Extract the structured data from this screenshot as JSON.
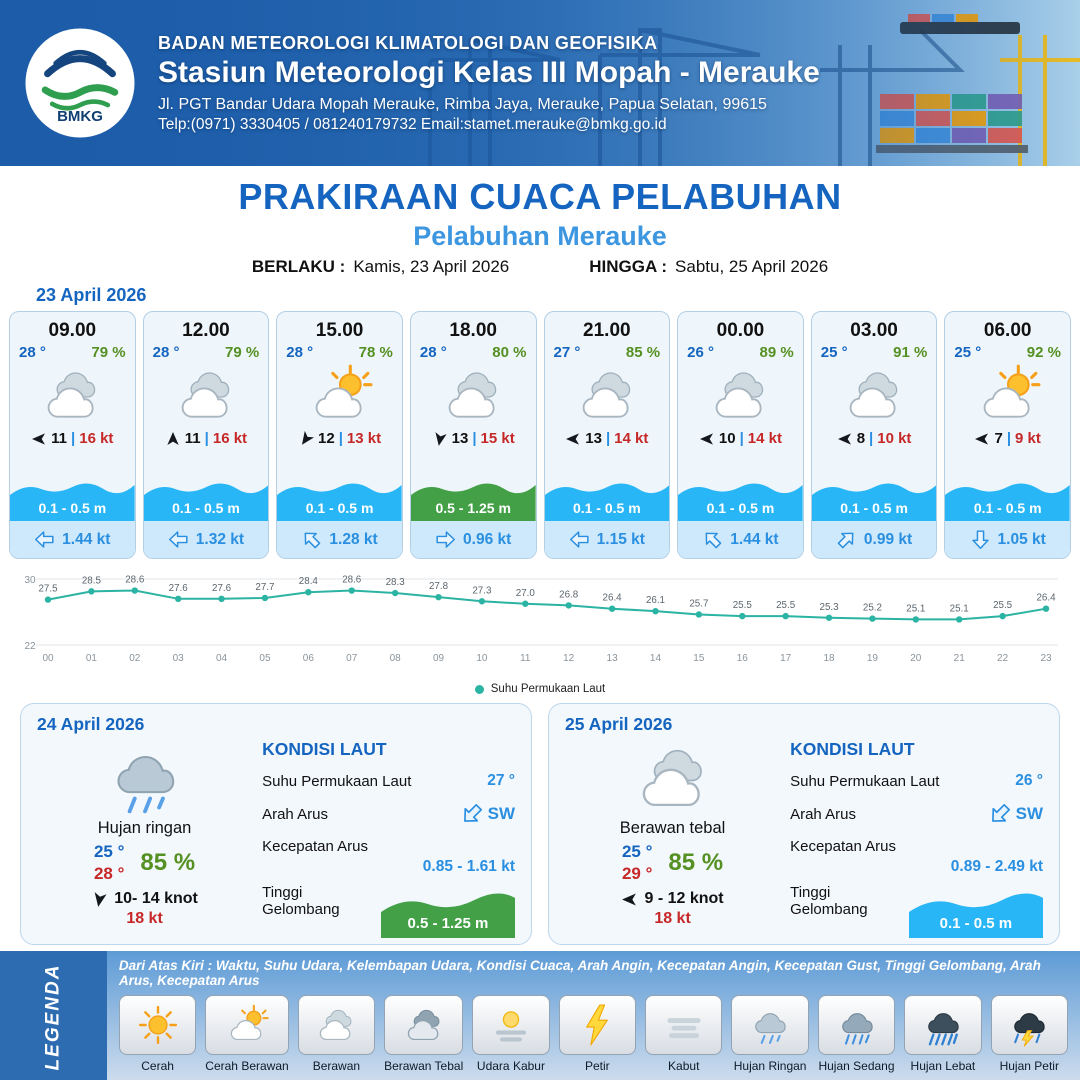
{
  "header": {
    "logo_label": "BMKG",
    "agency": "BADAN METEOROLOGI KLIMATOLOGI DAN GEOFISIKA",
    "station": "Stasiun Meteorologi Kelas III Mopah - Merauke",
    "address": "Jl. PGT Bandar Udara Mopah Merauke, Rimba Jaya, Merauke, Papua Selatan, 99615",
    "contact": "Telp:(0971) 3330405 / 081240179732  Email:stamet.merauke@bmkg.go.id"
  },
  "title": {
    "main": "PRAKIRAAN CUACA PELABUHAN",
    "subtitle": "Pelabuhan Merauke",
    "valid_label": "BERLAKU :",
    "valid_value": "Kamis, 23 April 2026",
    "until_label": "HINGGA :",
    "until_value": "Sabtu, 25 April 2026"
  },
  "forecast": {
    "date": "23 April 2026",
    "sep": "|",
    "cards": [
      {
        "time": "09.00",
        "temp": "28 °",
        "humidity": "79 %",
        "condition": "berawan",
        "wind_deg": "180deg",
        "wind": "11",
        "gust": "16 kt",
        "wave": "0.1 - 0.5 m",
        "wave_color": "#29b6f6",
        "current_deg": "180deg",
        "current": "1.44 kt"
      },
      {
        "time": "12.00",
        "temp": "28 °",
        "humidity": "79 %",
        "condition": "berawan",
        "wind_deg": "270deg",
        "wind": "11",
        "gust": "16 kt",
        "wave": "0.1 - 0.5 m",
        "wave_color": "#29b6f6",
        "current_deg": "180deg",
        "current": "1.32 kt"
      },
      {
        "time": "15.00",
        "temp": "28 °",
        "humidity": "78 %",
        "condition": "cerah-berawan",
        "wind_deg": "125deg",
        "wind": "12",
        "gust": "13 kt",
        "wave": "0.1 - 0.5 m",
        "wave_color": "#29b6f6",
        "current_deg": "225deg",
        "current": "1.28 kt"
      },
      {
        "time": "18.00",
        "temp": "28 °",
        "humidity": "80 %",
        "condition": "berawan",
        "wind_deg": "100deg",
        "wind": "13",
        "gust": "15 kt",
        "wave": "0.5 - 1.25 m",
        "wave_color": "#43a047",
        "current_deg": "0deg",
        "current": "0.96 kt"
      },
      {
        "time": "21.00",
        "temp": "27 °",
        "humidity": "85 %",
        "condition": "berawan",
        "wind_deg": "180deg",
        "wind": "13",
        "gust": "14 kt",
        "wave": "0.1 - 0.5 m",
        "wave_color": "#29b6f6",
        "current_deg": "180deg",
        "current": "1.15 kt"
      },
      {
        "time": "00.00",
        "temp": "26 °",
        "humidity": "89 %",
        "condition": "berawan",
        "wind_deg": "180deg",
        "wind": "10",
        "gust": "14 kt",
        "wave": "0.1 - 0.5 m",
        "wave_color": "#29b6f6",
        "current_deg": "225deg",
        "current": "1.44 kt"
      },
      {
        "time": "03.00",
        "temp": "25 °",
        "humidity": "91 %",
        "condition": "berawan",
        "wind_deg": "180deg",
        "wind": "8",
        "gust": "10 kt",
        "wave": "0.1 - 0.5 m",
        "wave_color": "#29b6f6",
        "current_deg": "315deg",
        "current": "0.99 kt"
      },
      {
        "time": "06.00",
        "temp": "25 °",
        "humidity": "92 %",
        "condition": "cerah-berawan",
        "wind_deg": "180deg",
        "wind": "7",
        "gust": "9 kt",
        "wave": "0.1 - 0.5 m",
        "wave_color": "#29b6f6",
        "current_deg": "90deg",
        "current": "1.05 kt"
      }
    ]
  },
  "chart_data": {
    "type": "line",
    "x": [
      "00",
      "01",
      "02",
      "03",
      "04",
      "05",
      "06",
      "07",
      "08",
      "09",
      "10",
      "11",
      "12",
      "13",
      "14",
      "15",
      "16",
      "17",
      "18",
      "19",
      "20",
      "21",
      "22",
      "23"
    ],
    "series": [
      {
        "name": "Suhu Permukaan Laut",
        "values": [
          27.5,
          28.5,
          28.6,
          27.6,
          27.6,
          27.7,
          28.4,
          28.6,
          28.3,
          27.8,
          27.3,
          27.0,
          26.8,
          26.4,
          26.1,
          25.7,
          25.5,
          25.5,
          25.3,
          25.2,
          25.1,
          25.1,
          25.5,
          26.4
        ]
      }
    ],
    "ylim": [
      22,
      30
    ],
    "line_color": "#2bb3a3",
    "legend_position": "bottom",
    "grid": true
  },
  "days": [
    {
      "date": "24 April 2026",
      "icon": "hujan-ringan",
      "condition": "Hujan ringan",
      "temp_min": "25 °",
      "temp_max": "28 °",
      "humidity": "85 %",
      "wind_deg": "100deg",
      "wind_range": "10- 14 knot",
      "gust": "18 kt",
      "sea": {
        "title": "KONDISI LAUT",
        "sst_label": "Suhu Permukaan Laut",
        "sst": "27 °",
        "current_dir_label": "Arah Arus",
        "current_dir": "SW",
        "current_deg": "135deg",
        "current_speed_label": "Kecepatan Arus",
        "current_speed": "0.85 - 1.61 kt",
        "wave_label": "Tinggi Gelombang",
        "wave": "0.5 - 1.25 m",
        "wave_color": "#43a047"
      }
    },
    {
      "date": "25 April 2026",
      "icon": "berawan",
      "condition": "Berawan tebal",
      "temp_min": "25 °",
      "temp_max": "29 °",
      "humidity": "85 %",
      "wind_deg": "180deg",
      "wind_range": "9 - 12 knot",
      "gust": "18 kt",
      "sea": {
        "title": "KONDISI LAUT",
        "sst_label": "Suhu Permukaan Laut",
        "sst": "26 °",
        "current_dir_label": "Arah Arus",
        "current_dir": "SW",
        "current_deg": "135deg",
        "current_speed_label": "Kecepatan Arus",
        "current_speed": "0.89 - 2.49 kt",
        "wave_label": "Tinggi Gelombang",
        "wave": "0.1 - 0.5 m",
        "wave_color": "#29b6f6"
      }
    }
  ],
  "legend": {
    "title": "LEGENDA",
    "description": "Dari Atas Kiri : Waktu, Suhu Udara, Kelembapan Udara, Kondisi Cuaca, Arah Angin, Kecepatan Angin, Kecepatan Gust, Tinggi Gelombang, Arah Arus, Kecepatan Arus",
    "items": [
      {
        "label": "Cerah",
        "icon": "cerah"
      },
      {
        "label": "Cerah Berawan",
        "icon": "cerah-berawan"
      },
      {
        "label": "Berawan",
        "icon": "berawan"
      },
      {
        "label": "Berawan Tebal",
        "icon": "berawan-tebal"
      },
      {
        "label": "Udara Kabur",
        "icon": "udara-kabur"
      },
      {
        "label": "Petir",
        "icon": "petir"
      },
      {
        "label": "Kabut",
        "icon": "kabut"
      },
      {
        "label": "Hujan Ringan",
        "icon": "hujan-ringan"
      },
      {
        "label": "Hujan Sedang",
        "icon": "hujan-sedang"
      },
      {
        "label": "Hujan Lebat",
        "icon": "hujan-lebat"
      },
      {
        "label": "Hujan Petir",
        "icon": "hujan-petir"
      }
    ]
  }
}
